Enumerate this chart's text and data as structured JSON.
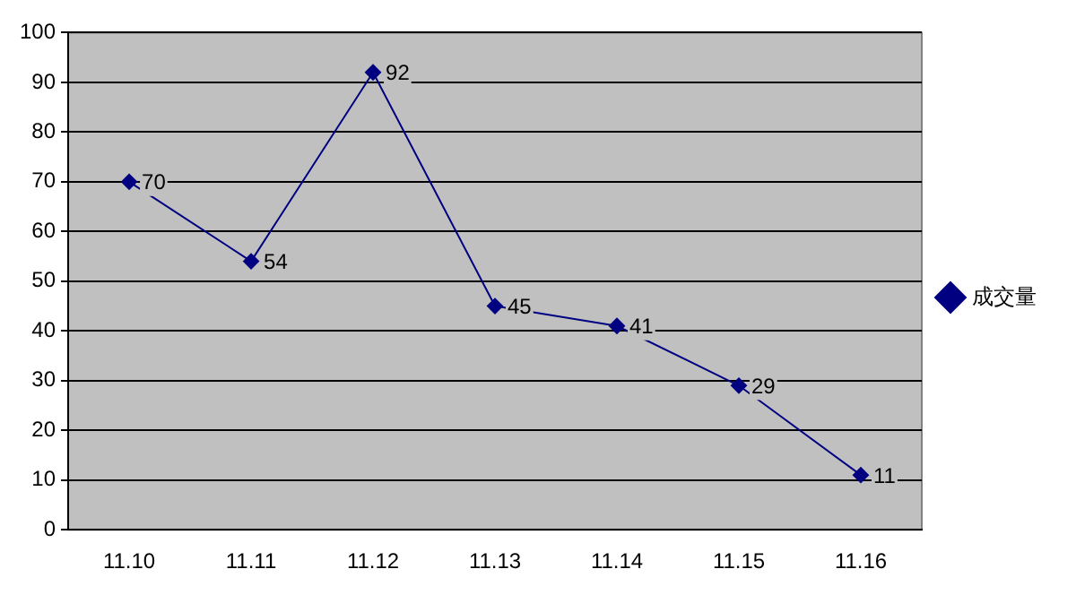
{
  "chart_data": {
    "type": "line",
    "categories": [
      "11.10",
      "11.11",
      "11.12",
      "11.13",
      "11.14",
      "11.15",
      "11.16"
    ],
    "series": [
      {
        "name": "成交量",
        "color": "#000080",
        "values": [
          70,
          54,
          92,
          45,
          41,
          29,
          11
        ]
      }
    ],
    "ylim": [
      0,
      100
    ],
    "yticks": [
      0,
      10,
      20,
      30,
      40,
      50,
      60,
      70,
      80,
      90,
      100
    ],
    "grid": "y",
    "legend": "right",
    "marker": "diamond",
    "line_style": "solid",
    "data_labels": true
  }
}
